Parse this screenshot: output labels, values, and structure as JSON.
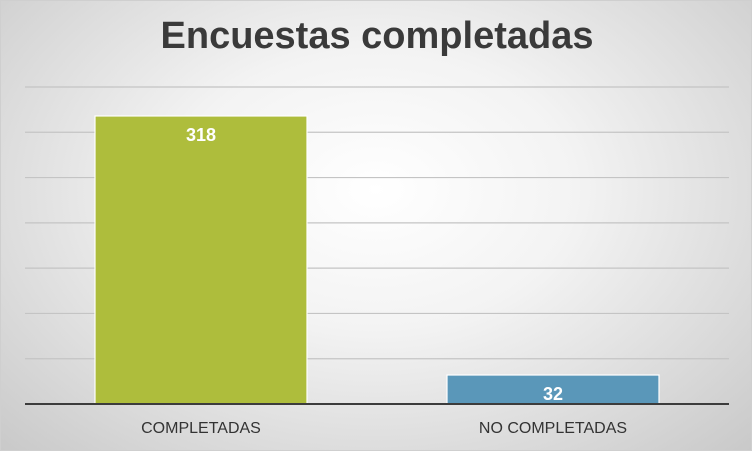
{
  "chart_data": {
    "type": "bar",
    "title": "Encuestas completadas",
    "categories": [
      "COMPLETADAS",
      "NO COMPLETADAS"
    ],
    "values": [
      318,
      32
    ],
    "data_labels": [
      "318",
      "32"
    ],
    "colors": [
      "#aebd3c",
      "#5a97b9"
    ],
    "ylim": [
      0,
      350
    ],
    "grid": true,
    "legend": "none",
    "xlabel": "",
    "ylabel": ""
  }
}
